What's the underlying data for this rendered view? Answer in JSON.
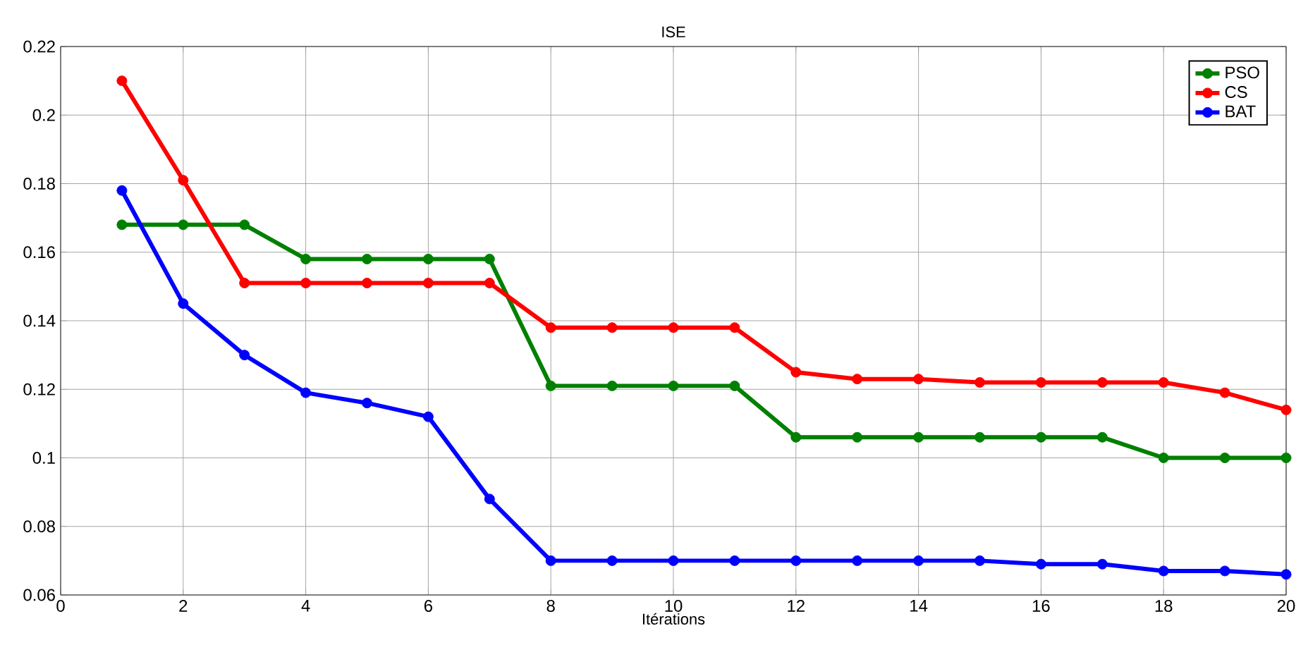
{
  "chart_data": {
    "type": "line",
    "title": "ISE",
    "xlabel": "Itérations",
    "x": [
      1,
      2,
      3,
      4,
      5,
      6,
      7,
      8,
      9,
      10,
      11,
      12,
      13,
      14,
      15,
      16,
      17,
      18,
      19,
      20
    ],
    "series": [
      {
        "name": "PSO",
        "color": "#008000",
        "values": [
          0.168,
          0.168,
          0.168,
          0.158,
          0.158,
          0.158,
          0.158,
          0.121,
          0.121,
          0.121,
          0.121,
          0.106,
          0.106,
          0.106,
          0.106,
          0.106,
          0.106,
          0.1,
          0.1,
          0.1
        ]
      },
      {
        "name": "CS",
        "color": "#ff0000",
        "values": [
          0.21,
          0.181,
          0.151,
          0.151,
          0.151,
          0.151,
          0.151,
          0.138,
          0.138,
          0.138,
          0.138,
          0.125,
          0.123,
          0.123,
          0.122,
          0.122,
          0.122,
          0.122,
          0.119,
          0.114
        ]
      },
      {
        "name": "BAT",
        "color": "#0000ff",
        "values": [
          0.178,
          0.145,
          0.13,
          0.119,
          0.116,
          0.112,
          0.088,
          0.07,
          0.07,
          0.07,
          0.07,
          0.07,
          0.07,
          0.07,
          0.07,
          0.069,
          0.069,
          0.067,
          0.067,
          0.066
        ]
      }
    ],
    "xlim": [
      0,
      20
    ],
    "xticks": [
      0,
      2,
      4,
      6,
      8,
      10,
      12,
      14,
      16,
      18,
      20
    ],
    "ylim": [
      0.06,
      0.22
    ],
    "yticks": [
      0.06,
      0.08,
      0.1,
      0.12,
      0.14,
      0.16,
      0.18,
      0.2,
      0.22
    ],
    "grid": true,
    "legend": "top right",
    "marker": "circle",
    "line_style": "solid"
  }
}
